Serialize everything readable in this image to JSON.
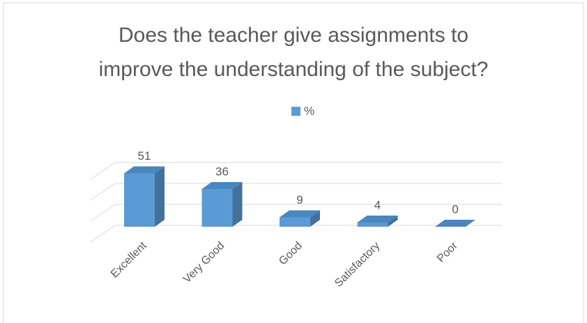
{
  "chart_data": {
    "type": "bar3d",
    "title_lines": [
      "Does the teacher give assignments to",
      "improve the understanding of the subject?"
    ],
    "categories": [
      "Excellent",
      "Very Good",
      "Good",
      "Satisfactory",
      "Poor"
    ],
    "series": [
      {
        "name": "%",
        "color": "#5b9bd5",
        "values": [
          51,
          36,
          9,
          4,
          0
        ]
      }
    ],
    "ylim": [
      0,
      60
    ],
    "yticks": [
      0,
      20,
      40,
      60
    ],
    "grid": true,
    "legend": "top"
  }
}
